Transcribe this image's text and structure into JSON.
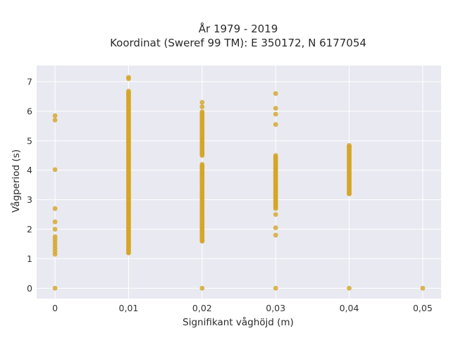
{
  "chart_data": {
    "type": "scatter",
    "title_line1": "År 1979 - 2019",
    "title_line2": "Koordinat (Sweref 99 TM): E 350172, N 6177054",
    "xlabel": "Signifikant våghöjd (m)",
    "ylabel": "Vågperiod (s)",
    "xlim": [
      -0.0025,
      0.0525
    ],
    "ylim": [
      -0.35,
      7.55
    ],
    "grid": true,
    "background_color": "#e9e9f1",
    "marker_color": "#d4a628",
    "x_ticks": [
      {
        "value": 0,
        "label": "0"
      },
      {
        "value": 0.01,
        "label": "0,01"
      },
      {
        "value": 0.02,
        "label": "0,02"
      },
      {
        "value": 0.03,
        "label": "0,03"
      },
      {
        "value": 0.04,
        "label": "0,04"
      },
      {
        "value": 0.05,
        "label": "0,05"
      }
    ],
    "y_ticks": [
      {
        "value": 0,
        "label": "0"
      },
      {
        "value": 1,
        "label": "1"
      },
      {
        "value": 2,
        "label": "2"
      },
      {
        "value": 3,
        "label": "3"
      },
      {
        "value": 4,
        "label": "4"
      },
      {
        "value": 5,
        "label": "5"
      },
      {
        "value": 6,
        "label": "6"
      },
      {
        "value": 7,
        "label": "7"
      }
    ],
    "series": [
      {
        "points": [
          [
            0,
            0
          ],
          [
            0,
            1.15
          ],
          [
            0,
            1.25
          ],
          [
            0,
            1.35
          ],
          [
            0,
            1.45
          ],
          [
            0,
            1.55
          ],
          [
            0,
            1.65
          ],
          [
            0,
            1.75
          ],
          [
            0,
            2.0
          ],
          [
            0,
            2.25
          ],
          [
            0,
            2.7
          ],
          [
            0,
            4.02
          ],
          [
            0,
            5.7
          ],
          [
            0,
            5.85
          ],
          [
            0.01,
            1.2
          ],
          [
            0.01,
            7.1
          ],
          [
            0.01,
            7.15
          ],
          [
            0.02,
            0
          ],
          [
            0.02,
            1.6
          ],
          [
            0.02,
            6.15
          ],
          [
            0.02,
            6.3
          ],
          [
            0.03,
            0
          ],
          [
            0.03,
            1.8
          ],
          [
            0.03,
            2.05
          ],
          [
            0.03,
            2.5
          ],
          [
            0.03,
            5.55
          ],
          [
            0.03,
            5.9
          ],
          [
            0.03,
            6.1
          ],
          [
            0.03,
            6.6
          ],
          [
            0.04,
            0
          ],
          [
            0.04,
            3.2
          ],
          [
            0.04,
            4.8
          ],
          [
            0.05,
            0
          ]
        ],
        "ranges": [
          {
            "x": 0.01,
            "y_min": 1.2,
            "y_max": 6.7
          },
          {
            "x": 0.02,
            "y_min": 1.6,
            "y_max": 4.2
          },
          {
            "x": 0.02,
            "y_min": 4.5,
            "y_max": 6.0
          },
          {
            "x": 0.03,
            "y_min": 2.7,
            "y_max": 4.5
          },
          {
            "x": 0.04,
            "y_min": 3.2,
            "y_max": 4.85
          }
        ]
      }
    ]
  }
}
